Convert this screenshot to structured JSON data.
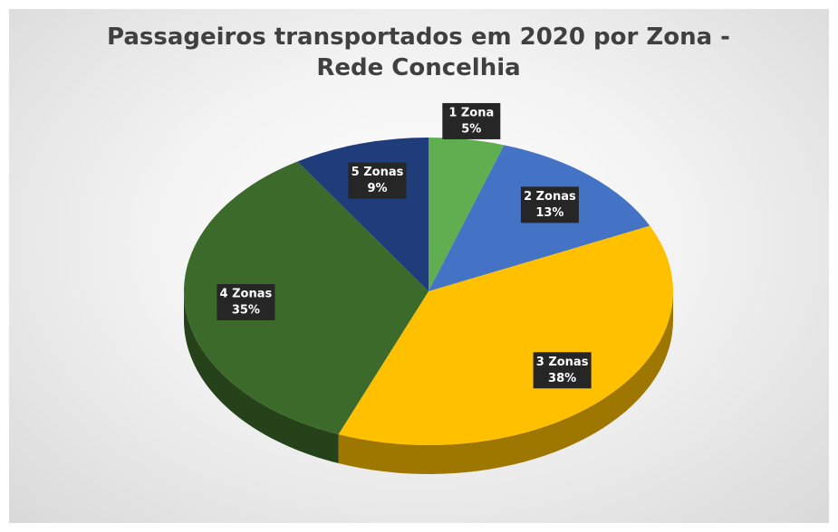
{
  "chart_data": {
    "type": "pie",
    "title": "Passageiros transportados em 2020 por Zona - Rede Concelhia",
    "categories": [
      "1 Zona",
      "2 Zonas",
      "3 Zonas",
      "4 Zonas",
      "5 Zonas"
    ],
    "values": [
      5,
      13,
      38,
      35,
      9
    ],
    "value_labels": [
      "5%",
      "13%",
      "38%",
      "35%",
      "9%"
    ],
    "colors": [
      "#5fae4f",
      "#4472c4",
      "#ffc000",
      "#3b6a2a",
      "#1f3d7a"
    ]
  }
}
